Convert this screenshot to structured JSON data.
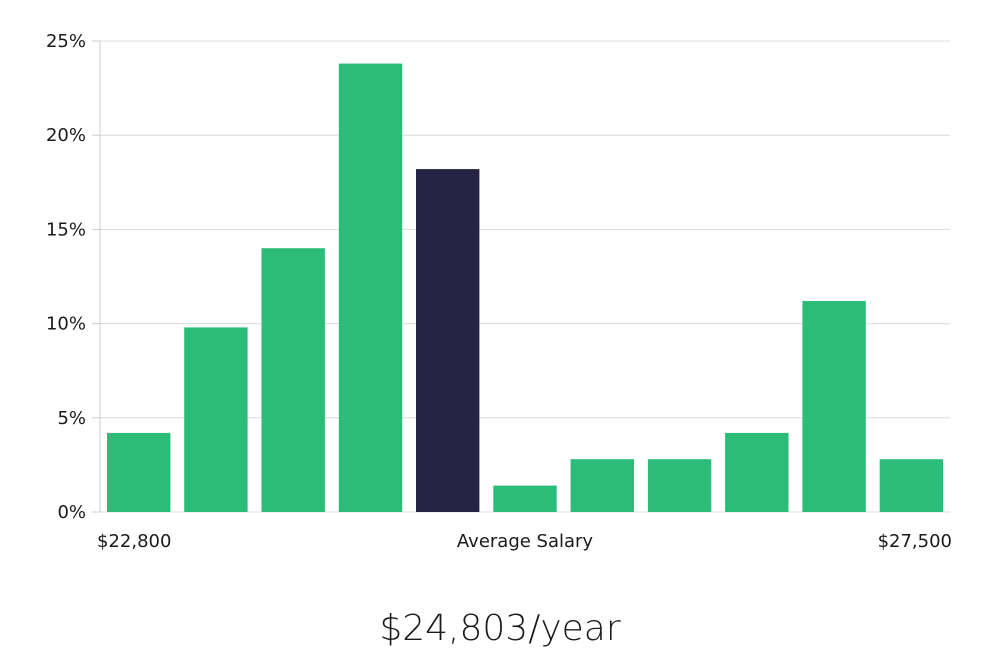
{
  "chart_data": {
    "type": "bar",
    "values": [
      4.2,
      9.8,
      14.0,
      23.8,
      18.2,
      1.4,
      2.8,
      2.8,
      4.2,
      11.2,
      2.8
    ],
    "highlight_index": 4,
    "ylim": [
      0,
      25
    ],
    "y_ticks": [
      "0%",
      "5%",
      "10%",
      "15%",
      "20%",
      "25%"
    ],
    "y_tick_values": [
      0,
      5,
      10,
      15,
      20,
      25
    ],
    "x_labels": {
      "left": "$22,800",
      "center": "Average Salary",
      "right": "$27,500"
    },
    "grid": true,
    "colors": {
      "bar": "#2bbd77",
      "bar_highlight": "#262345",
      "grid": "#dcdcdc",
      "axis": "#cccccc"
    }
  },
  "salary_text": "$24,803/year"
}
